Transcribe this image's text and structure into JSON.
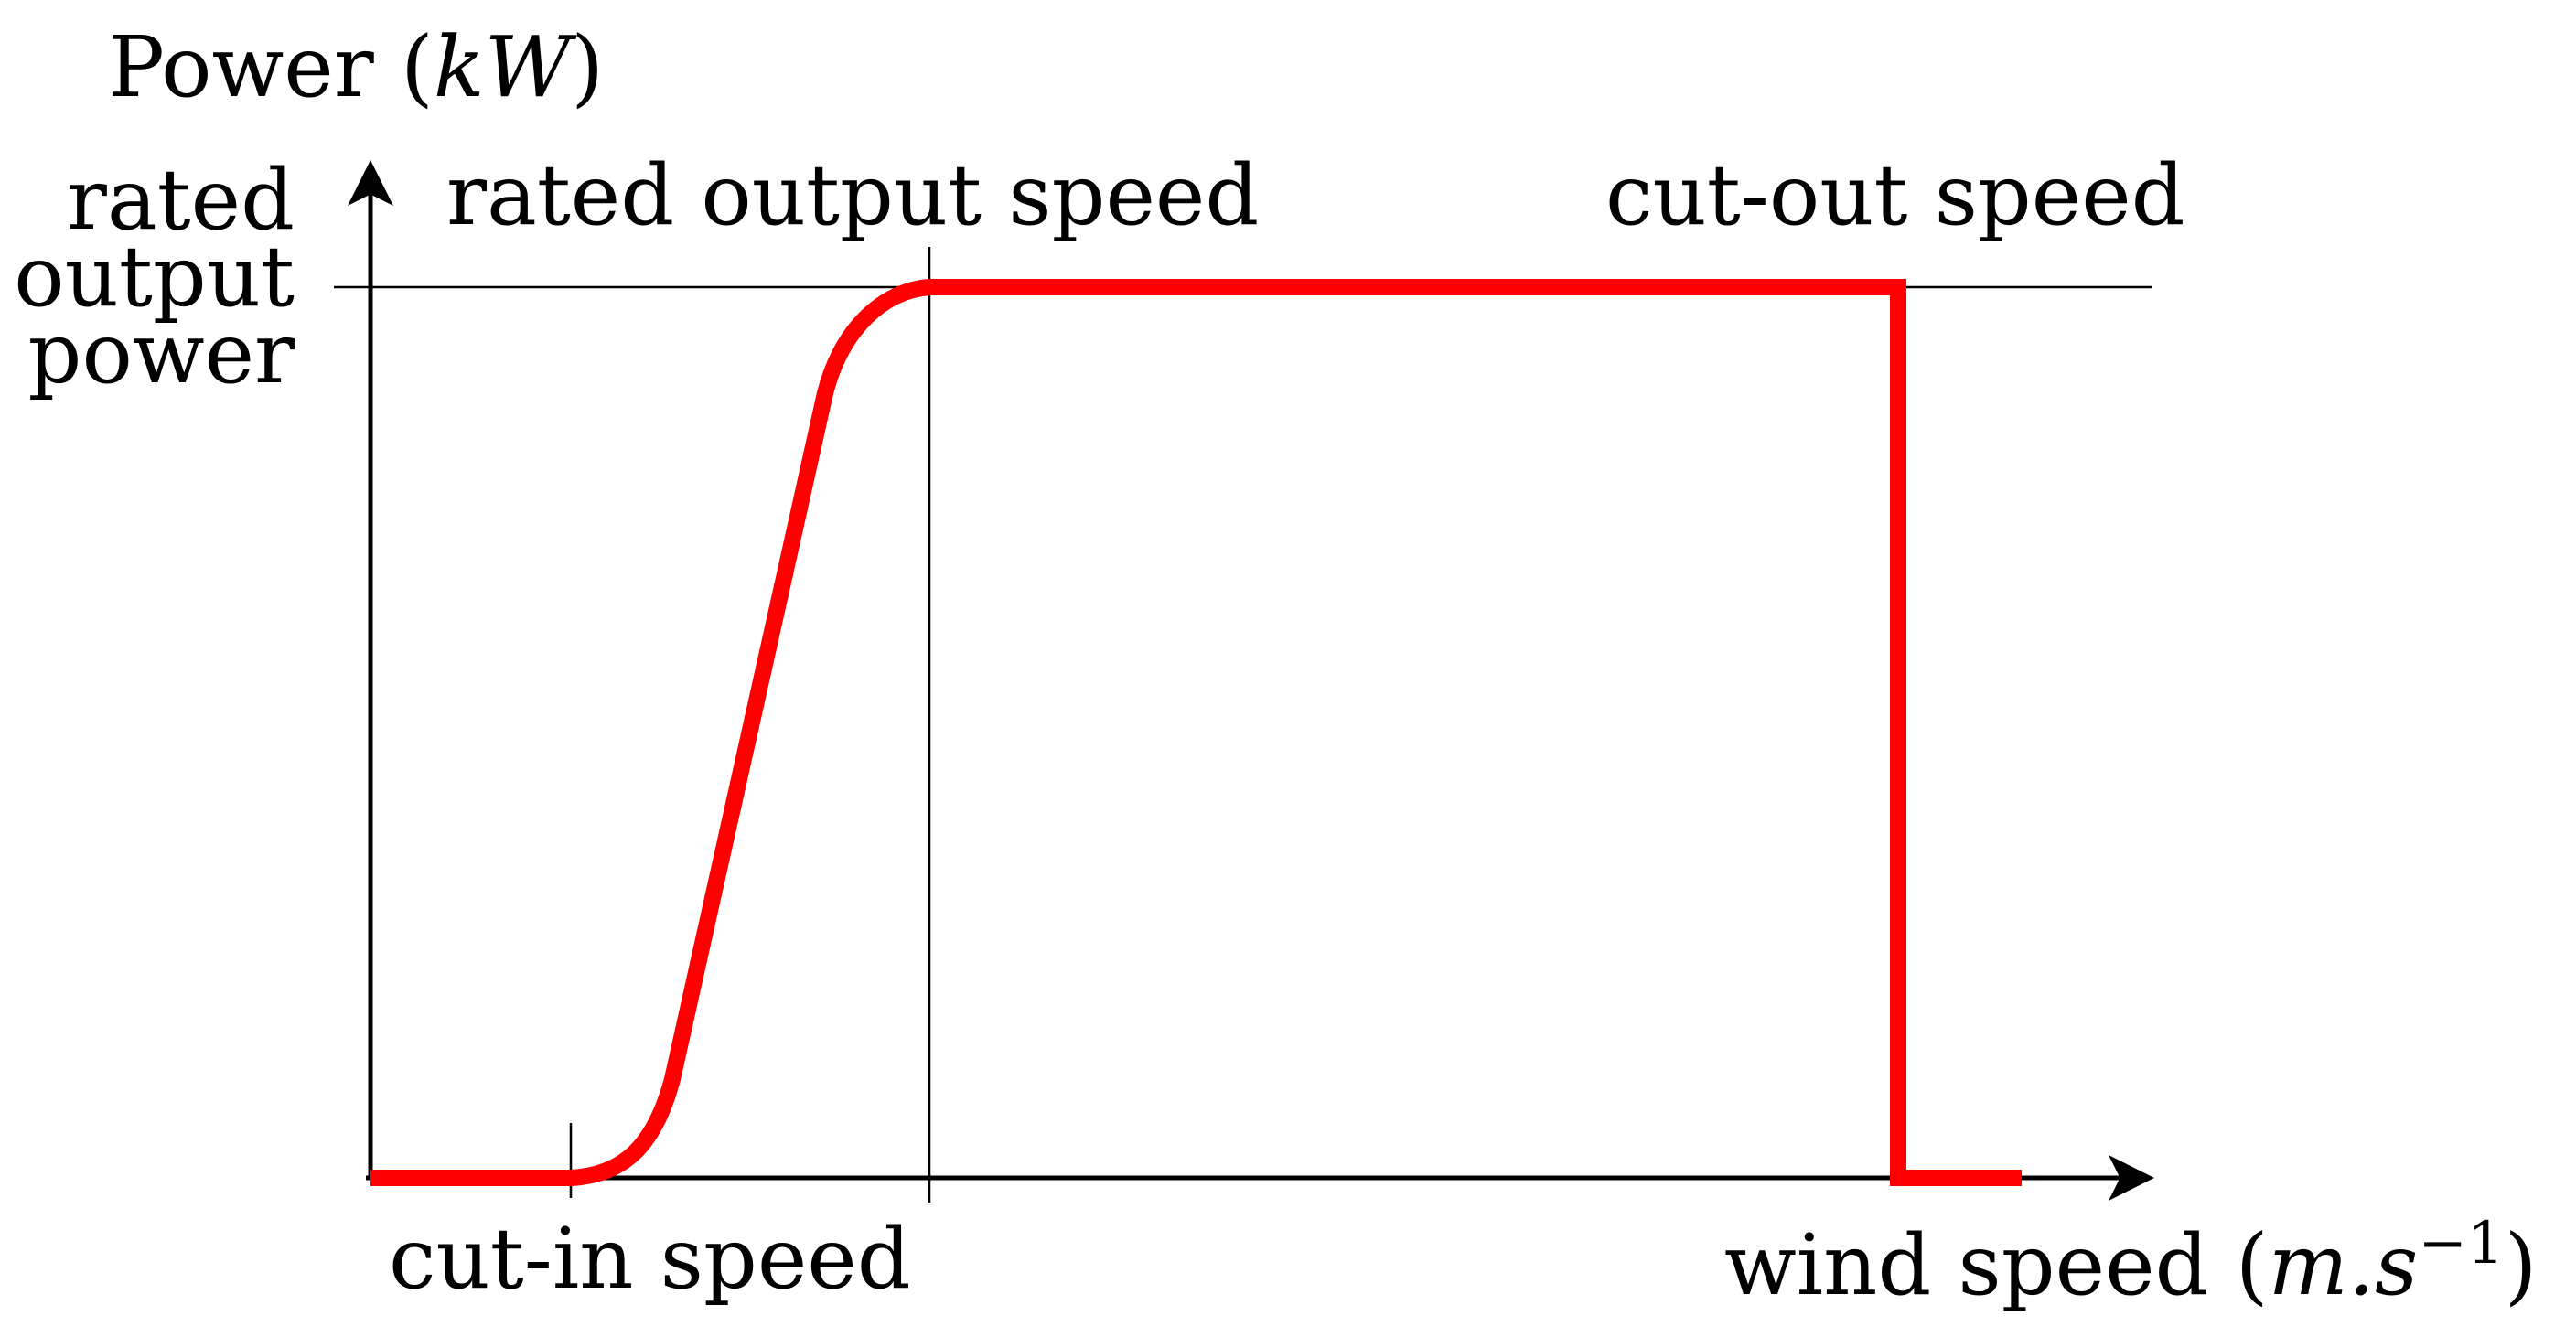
{
  "diagram": {
    "y_axis_label": {
      "prefix": "Power (",
      "unit": "kW",
      "suffix": ")"
    },
    "x_axis_label": {
      "prefix": "wind speed (",
      "unit_base": "m.s",
      "unit_exponent": "−1",
      "suffix": ")"
    },
    "rated_output_power_label": [
      "rated",
      "output",
      "power"
    ],
    "rated_output_speed_label": "rated output speed",
    "cut_out_speed_label": "cut-out speed",
    "cut_in_speed_label": "cut-in speed",
    "colors": {
      "curve": "#ff0000",
      "axes": "#000000",
      "background": "#ffffff"
    }
  }
}
